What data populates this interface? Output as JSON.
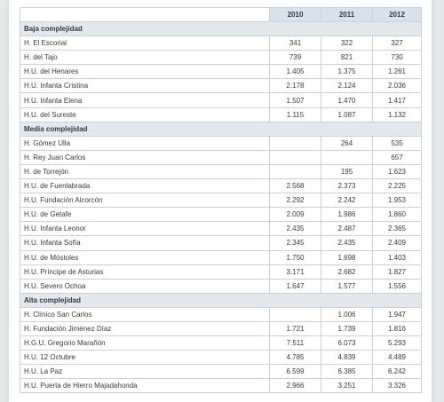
{
  "years": [
    "2010",
    "2011",
    "2012"
  ],
  "sections": [
    {
      "title": "Baja complejidad",
      "rows": [
        {
          "name": "H. El Escorial",
          "v": [
            "341",
            "322",
            "327"
          ]
        },
        {
          "name": "H. del Tajo",
          "v": [
            "739",
            "821",
            "730"
          ]
        },
        {
          "name": "H.U. del Henares",
          "v": [
            "1.405",
            "1.375",
            "1.261"
          ]
        },
        {
          "name": "H.U. Infanta Cristina",
          "v": [
            "2.178",
            "2.124",
            "2.036"
          ]
        },
        {
          "name": "H.U. Infanta Elena",
          "v": [
            "1.507",
            "1.470",
            "1.417"
          ]
        },
        {
          "name": "H.U. del Sureste",
          "v": [
            "1.115",
            "1.087",
            "1.132"
          ]
        }
      ]
    },
    {
      "title": "Media complejidad",
      "rows": [
        {
          "name": "H. Gómez Ulla",
          "v": [
            "",
            "264",
            "535"
          ]
        },
        {
          "name": "H. Rey Juan Carlos",
          "v": [
            "",
            "",
            "657"
          ]
        },
        {
          "name": "H. de Torrejón",
          "v": [
            "",
            "195",
            "1.623"
          ]
        },
        {
          "name": "H.U. de Fuenlabrada",
          "v": [
            "2.568",
            "2.373",
            "2.225"
          ]
        },
        {
          "name": "H.U. Fundación Alcorcón",
          "v": [
            "2.292",
            "2.242",
            "1.953"
          ]
        },
        {
          "name": "H.U. de Getafe",
          "v": [
            "2.009",
            "1.986",
            "1.860"
          ]
        },
        {
          "name": "H.U. Infanta Leonor",
          "v": [
            "2.435",
            "2.487",
            "2.365"
          ]
        },
        {
          "name": "H.U. Infanta Sofía",
          "v": [
            "2.345",
            "2.435",
            "2.409"
          ]
        },
        {
          "name": "H.U. de Móstoles",
          "v": [
            "1.750",
            "1.698",
            "1.403"
          ]
        },
        {
          "name": "H.U. Príncipe de Asturias",
          "v": [
            "3.171",
            "2.682",
            "1.827"
          ]
        },
        {
          "name": "H.U. Severo Ochoa",
          "v": [
            "1.647",
            "1.577",
            "1.556"
          ]
        }
      ]
    },
    {
      "title": "Alta complejidad",
      "rows": [
        {
          "name": "H. Clínico San Carlos",
          "v": [
            "",
            "1.006",
            "1.947"
          ]
        },
        {
          "name": "H. Fundación Jiménez Díaz",
          "v": [
            "1.721",
            "1.739",
            "1.816"
          ]
        },
        {
          "name": "H.G.U. Gregorio Marañón",
          "v": [
            "7.511",
            "6.073",
            "5.293"
          ]
        },
        {
          "name": "H.U. 12 Octubre",
          "v": [
            "4.785",
            "4.839",
            "4.489"
          ]
        },
        {
          "name": "H.U. La Paz",
          "v": [
            "6.599",
            "6.385",
            "6.242"
          ]
        },
        {
          "name": "H.U. Puerta de Hierro Majadahonda",
          "v": [
            "2.966",
            "3.251",
            "3.326"
          ]
        }
      ]
    }
  ]
}
